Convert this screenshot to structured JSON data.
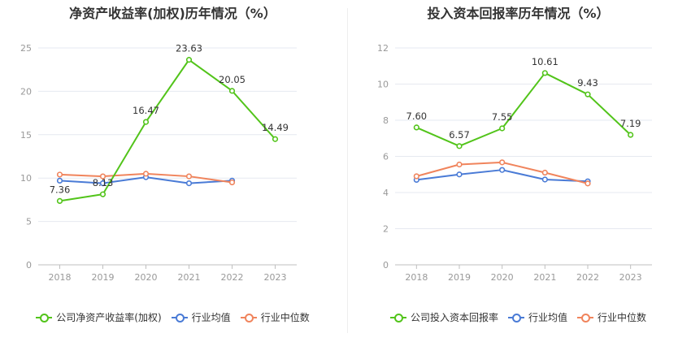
{
  "chart_data": [
    {
      "type": "line",
      "title": "净资产收益率(加权)历年情况（%）",
      "categories": [
        "2018",
        "2019",
        "2020",
        "2021",
        "2022",
        "2023"
      ],
      "ylim": [
        0,
        25
      ],
      "yticks": [
        "0",
        "5",
        "10",
        "15",
        "20",
        "25"
      ],
      "grid": true,
      "legend_position": "bottom",
      "series": [
        {
          "name": "公司净资产收益率(加权)",
          "color": "#52c41a",
          "values": [
            7.36,
            8.13,
            16.47,
            23.63,
            20.05,
            14.49
          ],
          "labels": [
            "7.36",
            "8.13",
            "16.47",
            "23.63",
            "20.05",
            "14.49"
          ]
        },
        {
          "name": "行业均值",
          "color": "#4a7bd6",
          "values": [
            9.7,
            9.4,
            10.1,
            9.4,
            9.7,
            null
          ]
        },
        {
          "name": "行业中位数",
          "color": "#f0845c",
          "values": [
            10.4,
            10.2,
            10.5,
            10.2,
            9.5,
            null
          ]
        }
      ]
    },
    {
      "type": "line",
      "title": "投入资本回报率历年情况（%）",
      "categories": [
        "2018",
        "2019",
        "2020",
        "2021",
        "2022",
        "2023"
      ],
      "ylim": [
        0,
        12
      ],
      "yticks": [
        "0",
        "2",
        "4",
        "6",
        "8",
        "10",
        "12"
      ],
      "grid": true,
      "legend_position": "bottom",
      "series": [
        {
          "name": "公司投入资本回报率",
          "color": "#52c41a",
          "values": [
            7.6,
            6.57,
            7.55,
            10.61,
            9.43,
            7.19
          ],
          "labels": [
            "7.60",
            "6.57",
            "7.55",
            "10.61",
            "9.43",
            "7.19"
          ]
        },
        {
          "name": "行业均值",
          "color": "#4a7bd6",
          "values": [
            4.7,
            5.0,
            5.25,
            4.72,
            4.62,
            null
          ]
        },
        {
          "name": "行业中位数",
          "color": "#f0845c",
          "values": [
            4.9,
            5.55,
            5.67,
            5.1,
            4.5,
            null
          ]
        }
      ]
    }
  ]
}
